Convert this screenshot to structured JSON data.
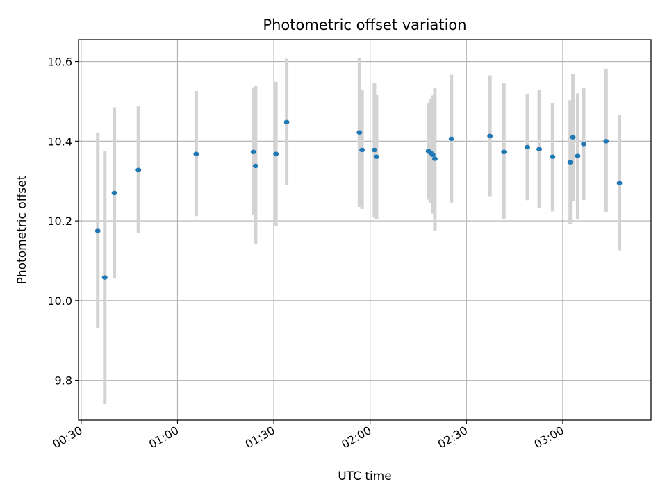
{
  "chart_data": {
    "type": "scatter",
    "title": "Photometric offset variation",
    "xlabel": "UTC time",
    "ylabel": "Photometric offset",
    "x_unit": "time of day (HH:MM UTC)",
    "xlim": [
      "00:29:10",
      "03:27:30"
    ],
    "ylim": [
      9.7,
      10.655
    ],
    "x_ticks": [
      "00:30",
      "01:00",
      "01:30",
      "02:00",
      "02:30",
      "03:00"
    ],
    "y_ticks": [
      9.8,
      10.0,
      10.2,
      10.4,
      10.6
    ],
    "grid": true,
    "marker_color": "#1f77b4",
    "errorbar_color": "#d3d3d3",
    "points": [
      {
        "t": "00:35:10",
        "y": 10.175,
        "lo": 9.93,
        "hi": 10.42
      },
      {
        "t": "00:37:20",
        "y": 10.058,
        "lo": 9.74,
        "hi": 10.375
      },
      {
        "t": "00:40:20",
        "y": 10.27,
        "lo": 10.055,
        "hi": 10.485
      },
      {
        "t": "00:47:50",
        "y": 10.328,
        "lo": 10.17,
        "hi": 10.488
      },
      {
        "t": "01:05:50",
        "y": 10.368,
        "lo": 10.212,
        "hi": 10.526
      },
      {
        "t": "01:23:40",
        "y": 10.373,
        "lo": 10.215,
        "hi": 10.535
      },
      {
        "t": "01:24:20",
        "y": 10.338,
        "lo": 10.142,
        "hi": 10.538
      },
      {
        "t": "01:30:40",
        "y": 10.368,
        "lo": 10.187,
        "hi": 10.549
      },
      {
        "t": "01:34:00",
        "y": 10.448,
        "lo": 10.29,
        "hi": 10.607
      },
      {
        "t": "01:56:40",
        "y": 10.422,
        "lo": 10.235,
        "hi": 10.609
      },
      {
        "t": "01:57:30",
        "y": 10.378,
        "lo": 10.23,
        "hi": 10.528
      },
      {
        "t": "02:01:20",
        "y": 10.378,
        "lo": 10.21,
        "hi": 10.546
      },
      {
        "t": "02:02:00",
        "y": 10.361,
        "lo": 10.205,
        "hi": 10.516
      },
      {
        "t": "02:18:10",
        "y": 10.375,
        "lo": 10.253,
        "hi": 10.496
      },
      {
        "t": "02:18:50",
        "y": 10.371,
        "lo": 10.245,
        "hi": 10.505
      },
      {
        "t": "02:19:30",
        "y": 10.366,
        "lo": 10.218,
        "hi": 10.515
      },
      {
        "t": "02:20:10",
        "y": 10.356,
        "lo": 10.176,
        "hi": 10.535
      },
      {
        "t": "02:25:20",
        "y": 10.406,
        "lo": 10.246,
        "hi": 10.567
      },
      {
        "t": "02:37:20",
        "y": 10.413,
        "lo": 10.262,
        "hi": 10.565
      },
      {
        "t": "02:41:40",
        "y": 10.373,
        "lo": 10.204,
        "hi": 10.545
      },
      {
        "t": "02:49:00",
        "y": 10.385,
        "lo": 10.252,
        "hi": 10.518
      },
      {
        "t": "02:52:40",
        "y": 10.38,
        "lo": 10.232,
        "hi": 10.529
      },
      {
        "t": "02:56:50",
        "y": 10.361,
        "lo": 10.224,
        "hi": 10.496
      },
      {
        "t": "03:02:20",
        "y": 10.347,
        "lo": 10.192,
        "hi": 10.503
      },
      {
        "t": "03:03:10",
        "y": 10.41,
        "lo": 10.249,
        "hi": 10.569
      },
      {
        "t": "03:04:40",
        "y": 10.363,
        "lo": 10.205,
        "hi": 10.52
      },
      {
        "t": "03:06:30",
        "y": 10.393,
        "lo": 10.252,
        "hi": 10.535
      },
      {
        "t": "03:13:30",
        "y": 10.4,
        "lo": 10.223,
        "hi": 10.58
      },
      {
        "t": "03:17:40",
        "y": 10.295,
        "lo": 10.126,
        "hi": 10.466
      }
    ]
  }
}
